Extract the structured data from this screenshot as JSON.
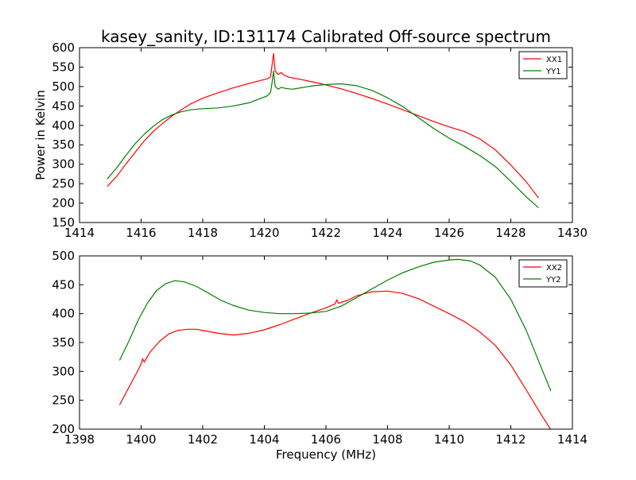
{
  "figure": {
    "title": "kasey_sanity, ID:131174 Calibrated Off-source spectrum"
  },
  "colors": {
    "red": "#ff0000",
    "green": "#008000",
    "axis": "#000000",
    "background": "#ffffff"
  },
  "chart_data": [
    {
      "type": "line",
      "xlabel": "",
      "ylabel": "Power in Kelvin",
      "xlim": [
        1414,
        1430
      ],
      "ylim": [
        150,
        600
      ],
      "xticks": [
        "1414",
        "1416",
        "1418",
        "1420",
        "1422",
        "1424",
        "1426",
        "1428",
        "1430"
      ],
      "yticks": [
        "150",
        "200",
        "250",
        "300",
        "350",
        "400",
        "450",
        "500",
        "550",
        "600"
      ],
      "grid": false,
      "legend_position": "top-right",
      "series": [
        {
          "name": "XX1",
          "color": "#ff0000",
          "points": [
            [
              1414.9,
              243
            ],
            [
              1415.2,
              268
            ],
            [
              1415.5,
              300
            ],
            [
              1415.8,
              330
            ],
            [
              1416.1,
              360
            ],
            [
              1416.4,
              385
            ],
            [
              1416.7,
              405
            ],
            [
              1417.0,
              424
            ],
            [
              1417.3,
              440
            ],
            [
              1417.6,
              455
            ],
            [
              1418.0,
              470
            ],
            [
              1418.5,
              484
            ],
            [
              1419.0,
              497
            ],
            [
              1419.5,
              508
            ],
            [
              1419.9,
              516
            ],
            [
              1420.1,
              520
            ],
            [
              1420.2,
              525
            ],
            [
              1420.25,
              555
            ],
            [
              1420.3,
              585
            ],
            [
              1420.35,
              540
            ],
            [
              1420.45,
              531
            ],
            [
              1420.55,
              536
            ],
            [
              1420.65,
              529
            ],
            [
              1420.8,
              524
            ],
            [
              1421.2,
              518
            ],
            [
              1421.8,
              508
            ],
            [
              1422.5,
              494
            ],
            [
              1423.0,
              482
            ],
            [
              1423.5,
              469
            ],
            [
              1424.0,
              455
            ],
            [
              1424.5,
              440
            ],
            [
              1425.0,
              425
            ],
            [
              1425.5,
              410
            ],
            [
              1426.0,
              396
            ],
            [
              1426.5,
              384
            ],
            [
              1427.0,
              365
            ],
            [
              1427.5,
              337
            ],
            [
              1428.0,
              298
            ],
            [
              1428.5,
              255
            ],
            [
              1428.9,
              213
            ]
          ]
        },
        {
          "name": "YY1",
          "color": "#008000",
          "points": [
            [
              1414.9,
              262
            ],
            [
              1415.2,
              290
            ],
            [
              1415.5,
              322
            ],
            [
              1415.8,
              352
            ],
            [
              1416.1,
              377
            ],
            [
              1416.4,
              398
            ],
            [
              1416.7,
              415
            ],
            [
              1417.0,
              427
            ],
            [
              1417.3,
              435
            ],
            [
              1417.6,
              440
            ],
            [
              1418.0,
              443
            ],
            [
              1418.5,
              445
            ],
            [
              1419.0,
              450
            ],
            [
              1419.5,
              458
            ],
            [
              1419.9,
              470
            ],
            [
              1420.1,
              476
            ],
            [
              1420.2,
              485
            ],
            [
              1420.25,
              510
            ],
            [
              1420.3,
              540
            ],
            [
              1420.35,
              500
            ],
            [
              1420.45,
              493
            ],
            [
              1420.55,
              498
            ],
            [
              1420.7,
              495
            ],
            [
              1420.9,
              493
            ],
            [
              1421.2,
              497
            ],
            [
              1421.6,
              502
            ],
            [
              1422.0,
              505
            ],
            [
              1422.5,
              507
            ],
            [
              1423.0,
              502
            ],
            [
              1423.5,
              490
            ],
            [
              1424.0,
              471
            ],
            [
              1424.5,
              448
            ],
            [
              1425.0,
              420
            ],
            [
              1425.5,
              392
            ],
            [
              1426.0,
              367
            ],
            [
              1426.5,
              346
            ],
            [
              1427.0,
              322
            ],
            [
              1427.5,
              294
            ],
            [
              1428.0,
              256
            ],
            [
              1428.5,
              216
            ],
            [
              1428.9,
              188
            ]
          ]
        }
      ]
    },
    {
      "type": "line",
      "xlabel": "Frequency (MHz)",
      "ylabel": "",
      "xlim": [
        1398,
        1414
      ],
      "ylim": [
        200,
        500
      ],
      "xticks": [
        "1398",
        "1400",
        "1402",
        "1404",
        "1406",
        "1408",
        "1410",
        "1412",
        "1414"
      ],
      "yticks": [
        "200",
        "250",
        "300",
        "350",
        "400",
        "450",
        "500"
      ],
      "grid": false,
      "legend_position": "top-right",
      "series": [
        {
          "name": "XX2",
          "color": "#ff0000",
          "points": [
            [
              1399.3,
              242
            ],
            [
              1399.6,
              272
            ],
            [
              1399.9,
              302
            ],
            [
              1400.0,
              313
            ],
            [
              1400.05,
              322
            ],
            [
              1400.1,
              316
            ],
            [
              1400.3,
              334
            ],
            [
              1400.6,
              352
            ],
            [
              1400.9,
              365
            ],
            [
              1401.2,
              371
            ],
            [
              1401.5,
              373
            ],
            [
              1401.8,
              373
            ],
            [
              1402.1,
              370
            ],
            [
              1402.5,
              366
            ],
            [
              1403.0,
              363
            ],
            [
              1403.5,
              366
            ],
            [
              1404.0,
              372
            ],
            [
              1404.5,
              381
            ],
            [
              1405.0,
              391
            ],
            [
              1405.5,
              401
            ],
            [
              1406.0,
              410
            ],
            [
              1406.3,
              417
            ],
            [
              1406.35,
              424
            ],
            [
              1406.4,
              418
            ],
            [
              1406.7,
              423
            ],
            [
              1407.0,
              431
            ],
            [
              1407.5,
              438
            ],
            [
              1408.0,
              439
            ],
            [
              1408.5,
              435
            ],
            [
              1409.0,
              426
            ],
            [
              1409.5,
              413
            ],
            [
              1410.0,
              400
            ],
            [
              1410.5,
              386
            ],
            [
              1411.0,
              368
            ],
            [
              1411.5,
              345
            ],
            [
              1412.0,
              311
            ],
            [
              1412.5,
              268
            ],
            [
              1413.0,
              224
            ],
            [
              1413.3,
              199
            ]
          ]
        },
        {
          "name": "YY2",
          "color": "#008000",
          "points": [
            [
              1399.3,
              319
            ],
            [
              1399.6,
              352
            ],
            [
              1399.9,
              388
            ],
            [
              1400.2,
              418
            ],
            [
              1400.5,
              440
            ],
            [
              1400.8,
              452
            ],
            [
              1401.1,
              457
            ],
            [
              1401.4,
              455
            ],
            [
              1401.8,
              447
            ],
            [
              1402.2,
              435
            ],
            [
              1402.6,
              423
            ],
            [
              1403.0,
              414
            ],
            [
              1403.5,
              406
            ],
            [
              1404.0,
              402
            ],
            [
              1404.5,
              400
            ],
            [
              1405.0,
              400
            ],
            [
              1405.5,
              401
            ],
            [
              1406.0,
              404
            ],
            [
              1406.5,
              413
            ],
            [
              1407.0,
              428
            ],
            [
              1407.5,
              443
            ],
            [
              1408.0,
              458
            ],
            [
              1408.5,
              471
            ],
            [
              1409.0,
              481
            ],
            [
              1409.5,
              489
            ],
            [
              1410.0,
              493
            ],
            [
              1410.3,
              494
            ],
            [
              1410.7,
              491
            ],
            [
              1411.0,
              484
            ],
            [
              1411.5,
              463
            ],
            [
              1412.0,
              425
            ],
            [
              1412.5,
              371
            ],
            [
              1413.0,
              305
            ],
            [
              1413.3,
              266
            ]
          ]
        }
      ]
    }
  ]
}
